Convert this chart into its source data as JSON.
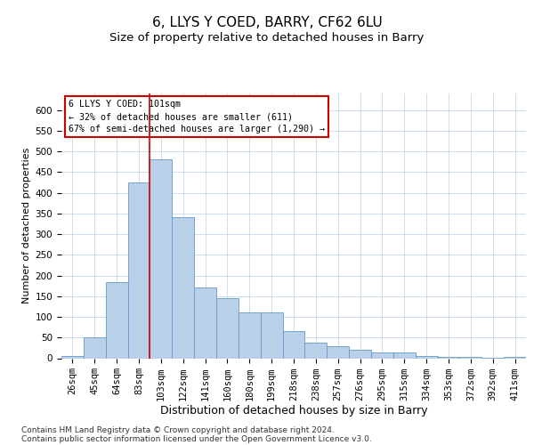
{
  "title1": "6, LLYS Y COED, BARRY, CF62 6LU",
  "title2": "Size of property relative to detached houses in Barry",
  "xlabel": "Distribution of detached houses by size in Barry",
  "ylabel": "Number of detached properties",
  "categories": [
    "26sqm",
    "45sqm",
    "64sqm",
    "83sqm",
    "103sqm",
    "122sqm",
    "141sqm",
    "160sqm",
    "180sqm",
    "199sqm",
    "218sqm",
    "238sqm",
    "257sqm",
    "276sqm",
    "295sqm",
    "315sqm",
    "334sqm",
    "353sqm",
    "372sqm",
    "392sqm",
    "411sqm"
  ],
  "values": [
    5,
    50,
    185,
    425,
    480,
    340,
    170,
    145,
    110,
    110,
    65,
    38,
    30,
    20,
    15,
    15,
    5,
    4,
    4,
    2,
    3
  ],
  "bar_color": "#b8d0e8",
  "bar_edge_color": "#6699cc",
  "vline_index": 4,
  "vline_color": "#cc0000",
  "annotation_text": "6 LLYS Y COED: 101sqm\n← 32% of detached houses are smaller (611)\n67% of semi-detached houses are larger (1,290) →",
  "annotation_box_color": "#ffffff",
  "annotation_box_edge": "#cc0000",
  "ylim": [
    0,
    640
  ],
  "yticks": [
    0,
    50,
    100,
    150,
    200,
    250,
    300,
    350,
    400,
    450,
    500,
    550,
    600
  ],
  "footer_text": "Contains HM Land Registry data © Crown copyright and database right 2024.\nContains public sector information licensed under the Open Government Licence v3.0.",
  "bg_color": "#ffffff",
  "grid_color": "#c5d8eb",
  "title1_fontsize": 11,
  "title2_fontsize": 9.5,
  "xlabel_fontsize": 9,
  "ylabel_fontsize": 8,
  "tick_fontsize": 7.5,
  "footer_fontsize": 6.5
}
